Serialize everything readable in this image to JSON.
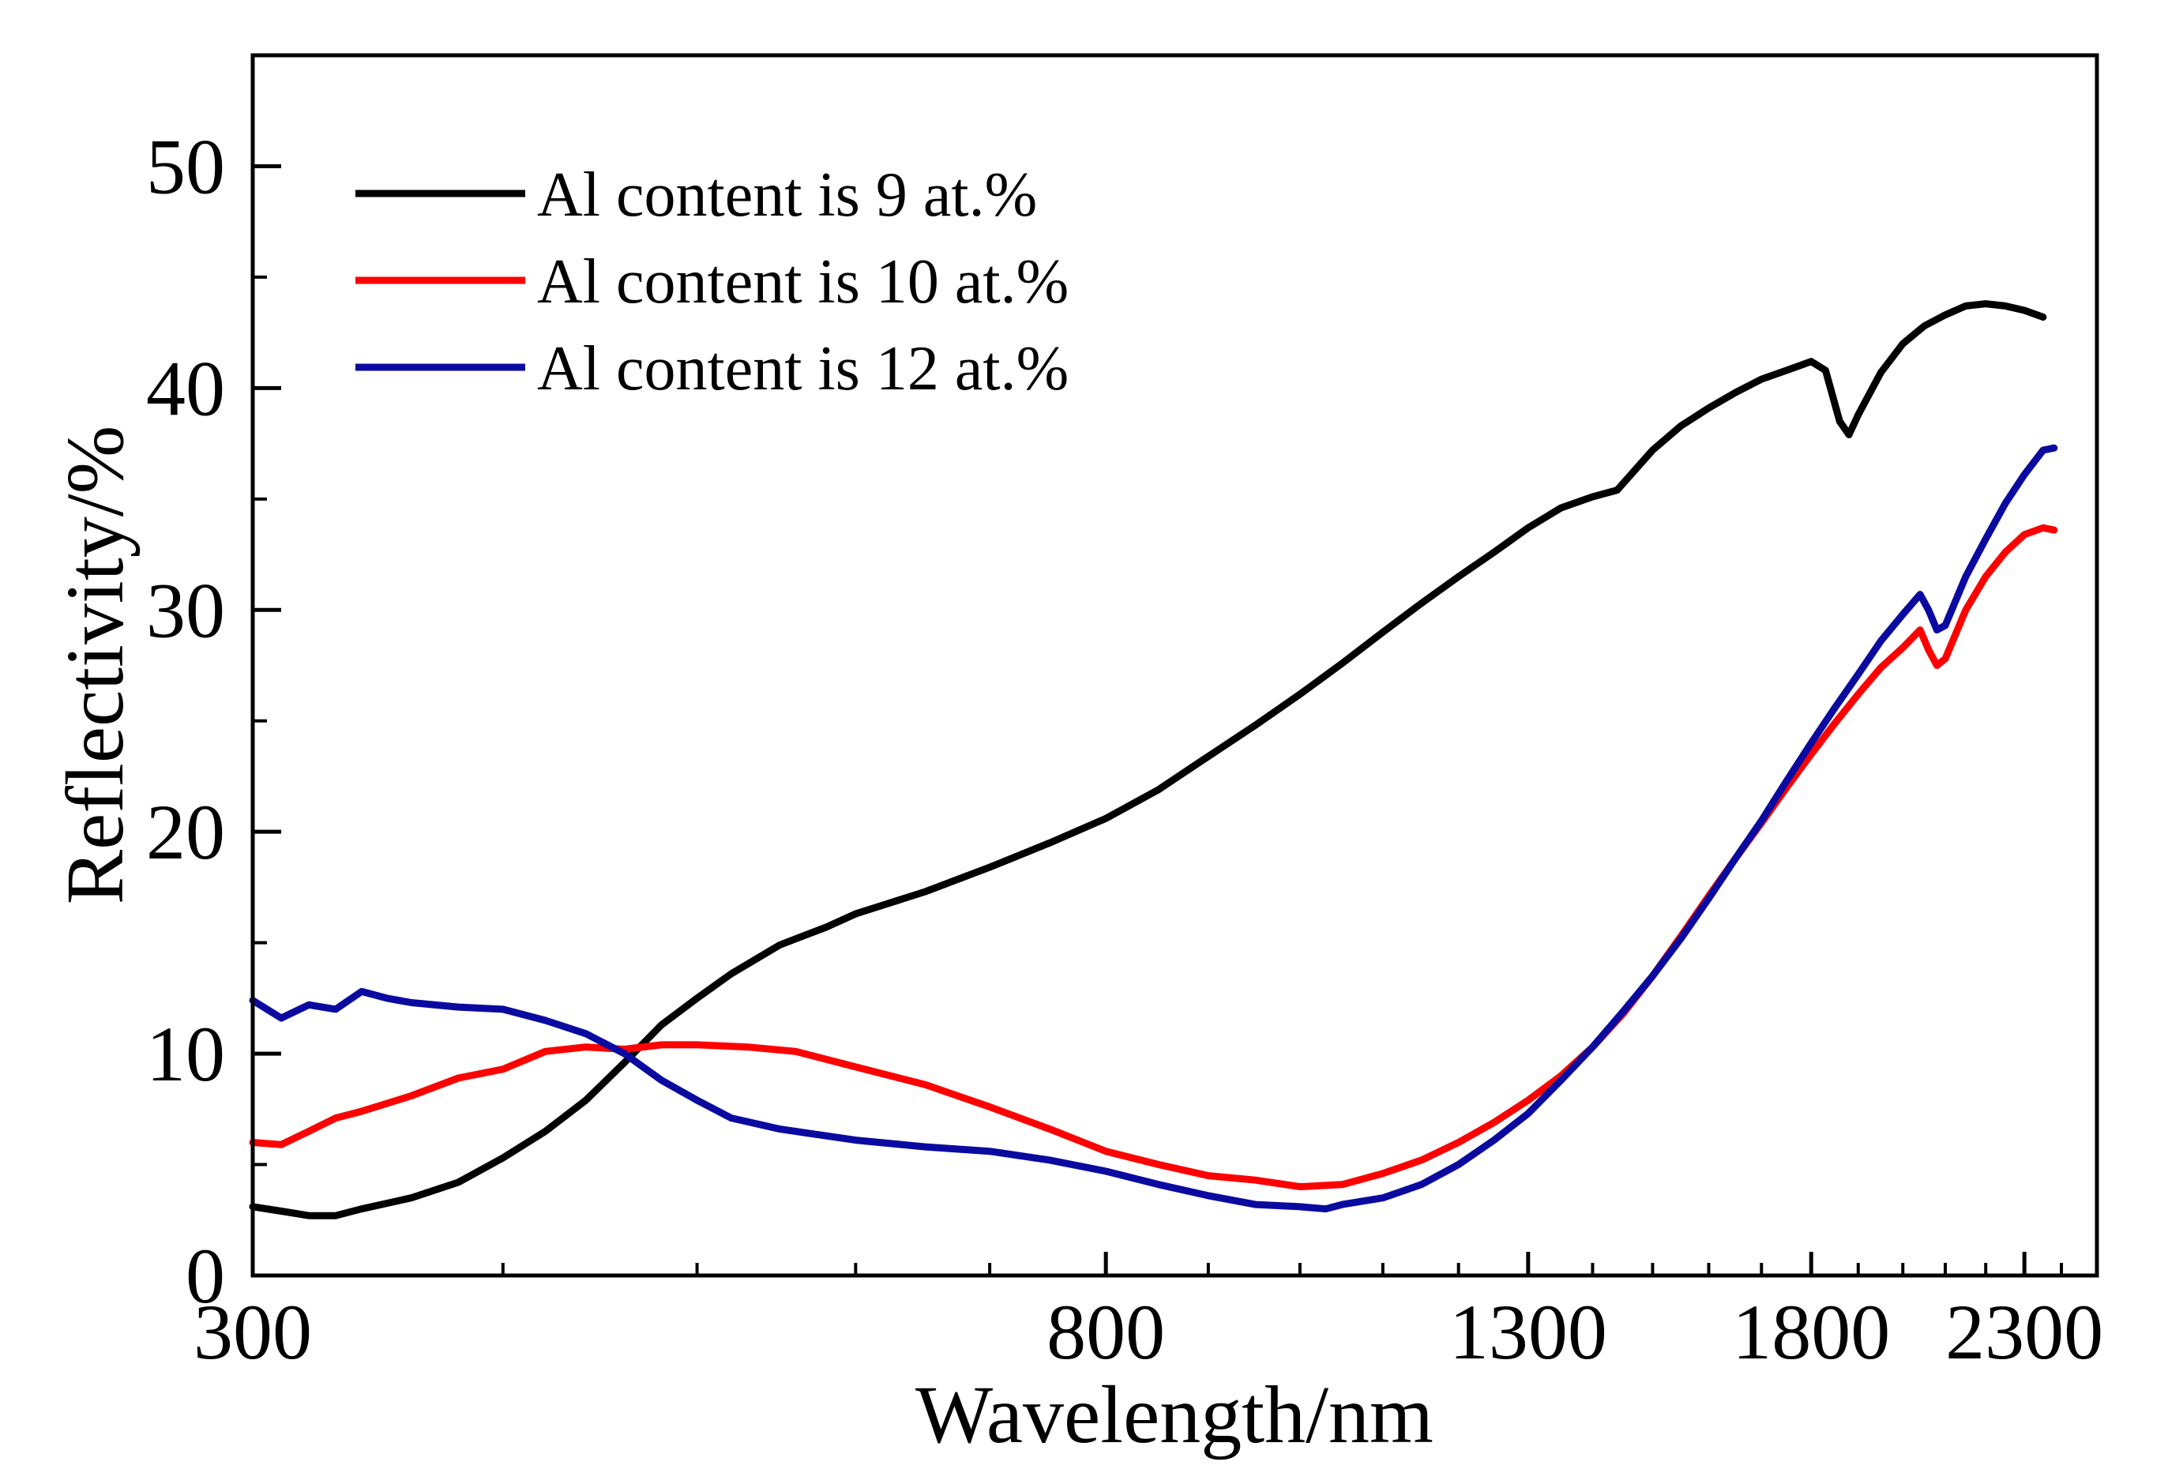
{
  "chart_data": {
    "type": "line",
    "title": "",
    "xlabel": "Wavelength/nm",
    "ylabel": "Reflectivity/%",
    "x_scale": "log",
    "xlim": [
      300,
      2500
    ],
    "ylim": [
      0,
      55
    ],
    "x_ticks": [
      300,
      800,
      1300,
      1800,
      2300
    ],
    "x_tick_labels": [
      "300",
      "800",
      "1300",
      "1800",
      "2300"
    ],
    "y_ticks": [
      0,
      10,
      20,
      30,
      40,
      50
    ],
    "y_tick_labels": [
      "0",
      "10",
      "20",
      "30",
      "40",
      "50"
    ],
    "grid": false,
    "legend_position": "top-left",
    "series": [
      {
        "name": "Al content is 9 at.%",
        "color": "#000000",
        "points": [
          [
            300,
            3.1
          ],
          [
            310,
            2.9
          ],
          [
            320,
            2.7
          ],
          [
            330,
            2.7
          ],
          [
            340,
            3.0
          ],
          [
            360,
            3.5
          ],
          [
            380,
            4.2
          ],
          [
            400,
            5.3
          ],
          [
            420,
            6.5
          ],
          [
            440,
            7.9
          ],
          [
            460,
            9.6
          ],
          [
            480,
            11.3
          ],
          [
            500,
            12.5
          ],
          [
            520,
            13.6
          ],
          [
            550,
            14.9
          ],
          [
            580,
            15.7
          ],
          [
            600,
            16.3
          ],
          [
            650,
            17.3
          ],
          [
            700,
            18.4
          ],
          [
            750,
            19.5
          ],
          [
            800,
            20.6
          ],
          [
            850,
            21.9
          ],
          [
            900,
            23.4
          ],
          [
            950,
            24.8
          ],
          [
            1000,
            26.2
          ],
          [
            1050,
            27.6
          ],
          [
            1100,
            29.0
          ],
          [
            1150,
            30.3
          ],
          [
            1200,
            31.5
          ],
          [
            1250,
            32.6
          ],
          [
            1300,
            33.7
          ],
          [
            1350,
            34.6
          ],
          [
            1400,
            35.1
          ],
          [
            1440,
            35.4
          ],
          [
            1500,
            37.2
          ],
          [
            1550,
            38.3
          ],
          [
            1600,
            39.1
          ],
          [
            1650,
            39.8
          ],
          [
            1700,
            40.4
          ],
          [
            1750,
            40.8
          ],
          [
            1800,
            41.2
          ],
          [
            1830,
            40.8
          ],
          [
            1860,
            38.5
          ],
          [
            1880,
            37.9
          ],
          [
            1900,
            38.8
          ],
          [
            1950,
            40.7
          ],
          [
            2000,
            42.0
          ],
          [
            2050,
            42.8
          ],
          [
            2100,
            43.3
          ],
          [
            2150,
            43.7
          ],
          [
            2200,
            43.8
          ],
          [
            2250,
            43.7
          ],
          [
            2300,
            43.5
          ],
          [
            2350,
            43.2
          ]
        ]
      },
      {
        "name": "Al content is 10 at.%",
        "color": "#ff0000",
        "points": [
          [
            300,
            6.0
          ],
          [
            310,
            5.9
          ],
          [
            320,
            6.5
          ],
          [
            330,
            7.1
          ],
          [
            340,
            7.4
          ],
          [
            360,
            8.1
          ],
          [
            380,
            8.9
          ],
          [
            400,
            9.3
          ],
          [
            420,
            10.1
          ],
          [
            440,
            10.3
          ],
          [
            460,
            10.2
          ],
          [
            480,
            10.4
          ],
          [
            500,
            10.4
          ],
          [
            530,
            10.3
          ],
          [
            560,
            10.1
          ],
          [
            600,
            9.4
          ],
          [
            650,
            8.6
          ],
          [
            700,
            7.6
          ],
          [
            750,
            6.6
          ],
          [
            800,
            5.6
          ],
          [
            850,
            5.0
          ],
          [
            900,
            4.5
          ],
          [
            950,
            4.3
          ],
          [
            1000,
            4.0
          ],
          [
            1050,
            4.1
          ],
          [
            1100,
            4.6
          ],
          [
            1150,
            5.2
          ],
          [
            1200,
            6.0
          ],
          [
            1250,
            6.9
          ],
          [
            1300,
            7.9
          ],
          [
            1350,
            9.0
          ],
          [
            1400,
            10.3
          ],
          [
            1450,
            11.8
          ],
          [
            1500,
            13.5
          ],
          [
            1550,
            15.3
          ],
          [
            1600,
            17.1
          ],
          [
            1650,
            18.8
          ],
          [
            1700,
            20.4
          ],
          [
            1750,
            22.0
          ],
          [
            1800,
            23.5
          ],
          [
            1850,
            24.9
          ],
          [
            1900,
            26.2
          ],
          [
            1950,
            27.4
          ],
          [
            2000,
            28.3
          ],
          [
            2040,
            29.1
          ],
          [
            2060,
            28.2
          ],
          [
            2080,
            27.5
          ],
          [
            2100,
            27.8
          ],
          [
            2150,
            30.0
          ],
          [
            2200,
            31.5
          ],
          [
            2250,
            32.6
          ],
          [
            2300,
            33.4
          ],
          [
            2350,
            33.7
          ],
          [
            2380,
            33.6
          ]
        ]
      },
      {
        "name": "Al content is 12 at.%",
        "color": "#0a0aa0",
        "points": [
          [
            300,
            12.4
          ],
          [
            310,
            11.6
          ],
          [
            320,
            12.2
          ],
          [
            330,
            12.0
          ],
          [
            340,
            12.8
          ],
          [
            350,
            12.5
          ],
          [
            360,
            12.3
          ],
          [
            380,
            12.1
          ],
          [
            400,
            12.0
          ],
          [
            420,
            11.5
          ],
          [
            440,
            10.9
          ],
          [
            460,
            10.0
          ],
          [
            480,
            8.8
          ],
          [
            500,
            7.9
          ],
          [
            520,
            7.1
          ],
          [
            550,
            6.6
          ],
          [
            600,
            6.1
          ],
          [
            650,
            5.8
          ],
          [
            700,
            5.6
          ],
          [
            750,
            5.2
          ],
          [
            800,
            4.7
          ],
          [
            850,
            4.1
          ],
          [
            900,
            3.6
          ],
          [
            950,
            3.2
          ],
          [
            1000,
            3.1
          ],
          [
            1030,
            3.0
          ],
          [
            1050,
            3.2
          ],
          [
            1100,
            3.5
          ],
          [
            1150,
            4.1
          ],
          [
            1200,
            5.0
          ],
          [
            1250,
            6.1
          ],
          [
            1300,
            7.3
          ],
          [
            1350,
            8.8
          ],
          [
            1400,
            10.3
          ],
          [
            1450,
            11.9
          ],
          [
            1500,
            13.5
          ],
          [
            1550,
            15.2
          ],
          [
            1600,
            17.0
          ],
          [
            1650,
            18.8
          ],
          [
            1700,
            20.5
          ],
          [
            1750,
            22.3
          ],
          [
            1800,
            24.0
          ],
          [
            1850,
            25.6
          ],
          [
            1900,
            27.1
          ],
          [
            1950,
            28.6
          ],
          [
            2000,
            29.8
          ],
          [
            2040,
            30.7
          ],
          [
            2060,
            30.0
          ],
          [
            2080,
            29.1
          ],
          [
            2100,
            29.3
          ],
          [
            2150,
            31.5
          ],
          [
            2200,
            33.2
          ],
          [
            2250,
            34.8
          ],
          [
            2300,
            36.1
          ],
          [
            2350,
            37.2
          ],
          [
            2380,
            37.3
          ]
        ]
      }
    ]
  }
}
